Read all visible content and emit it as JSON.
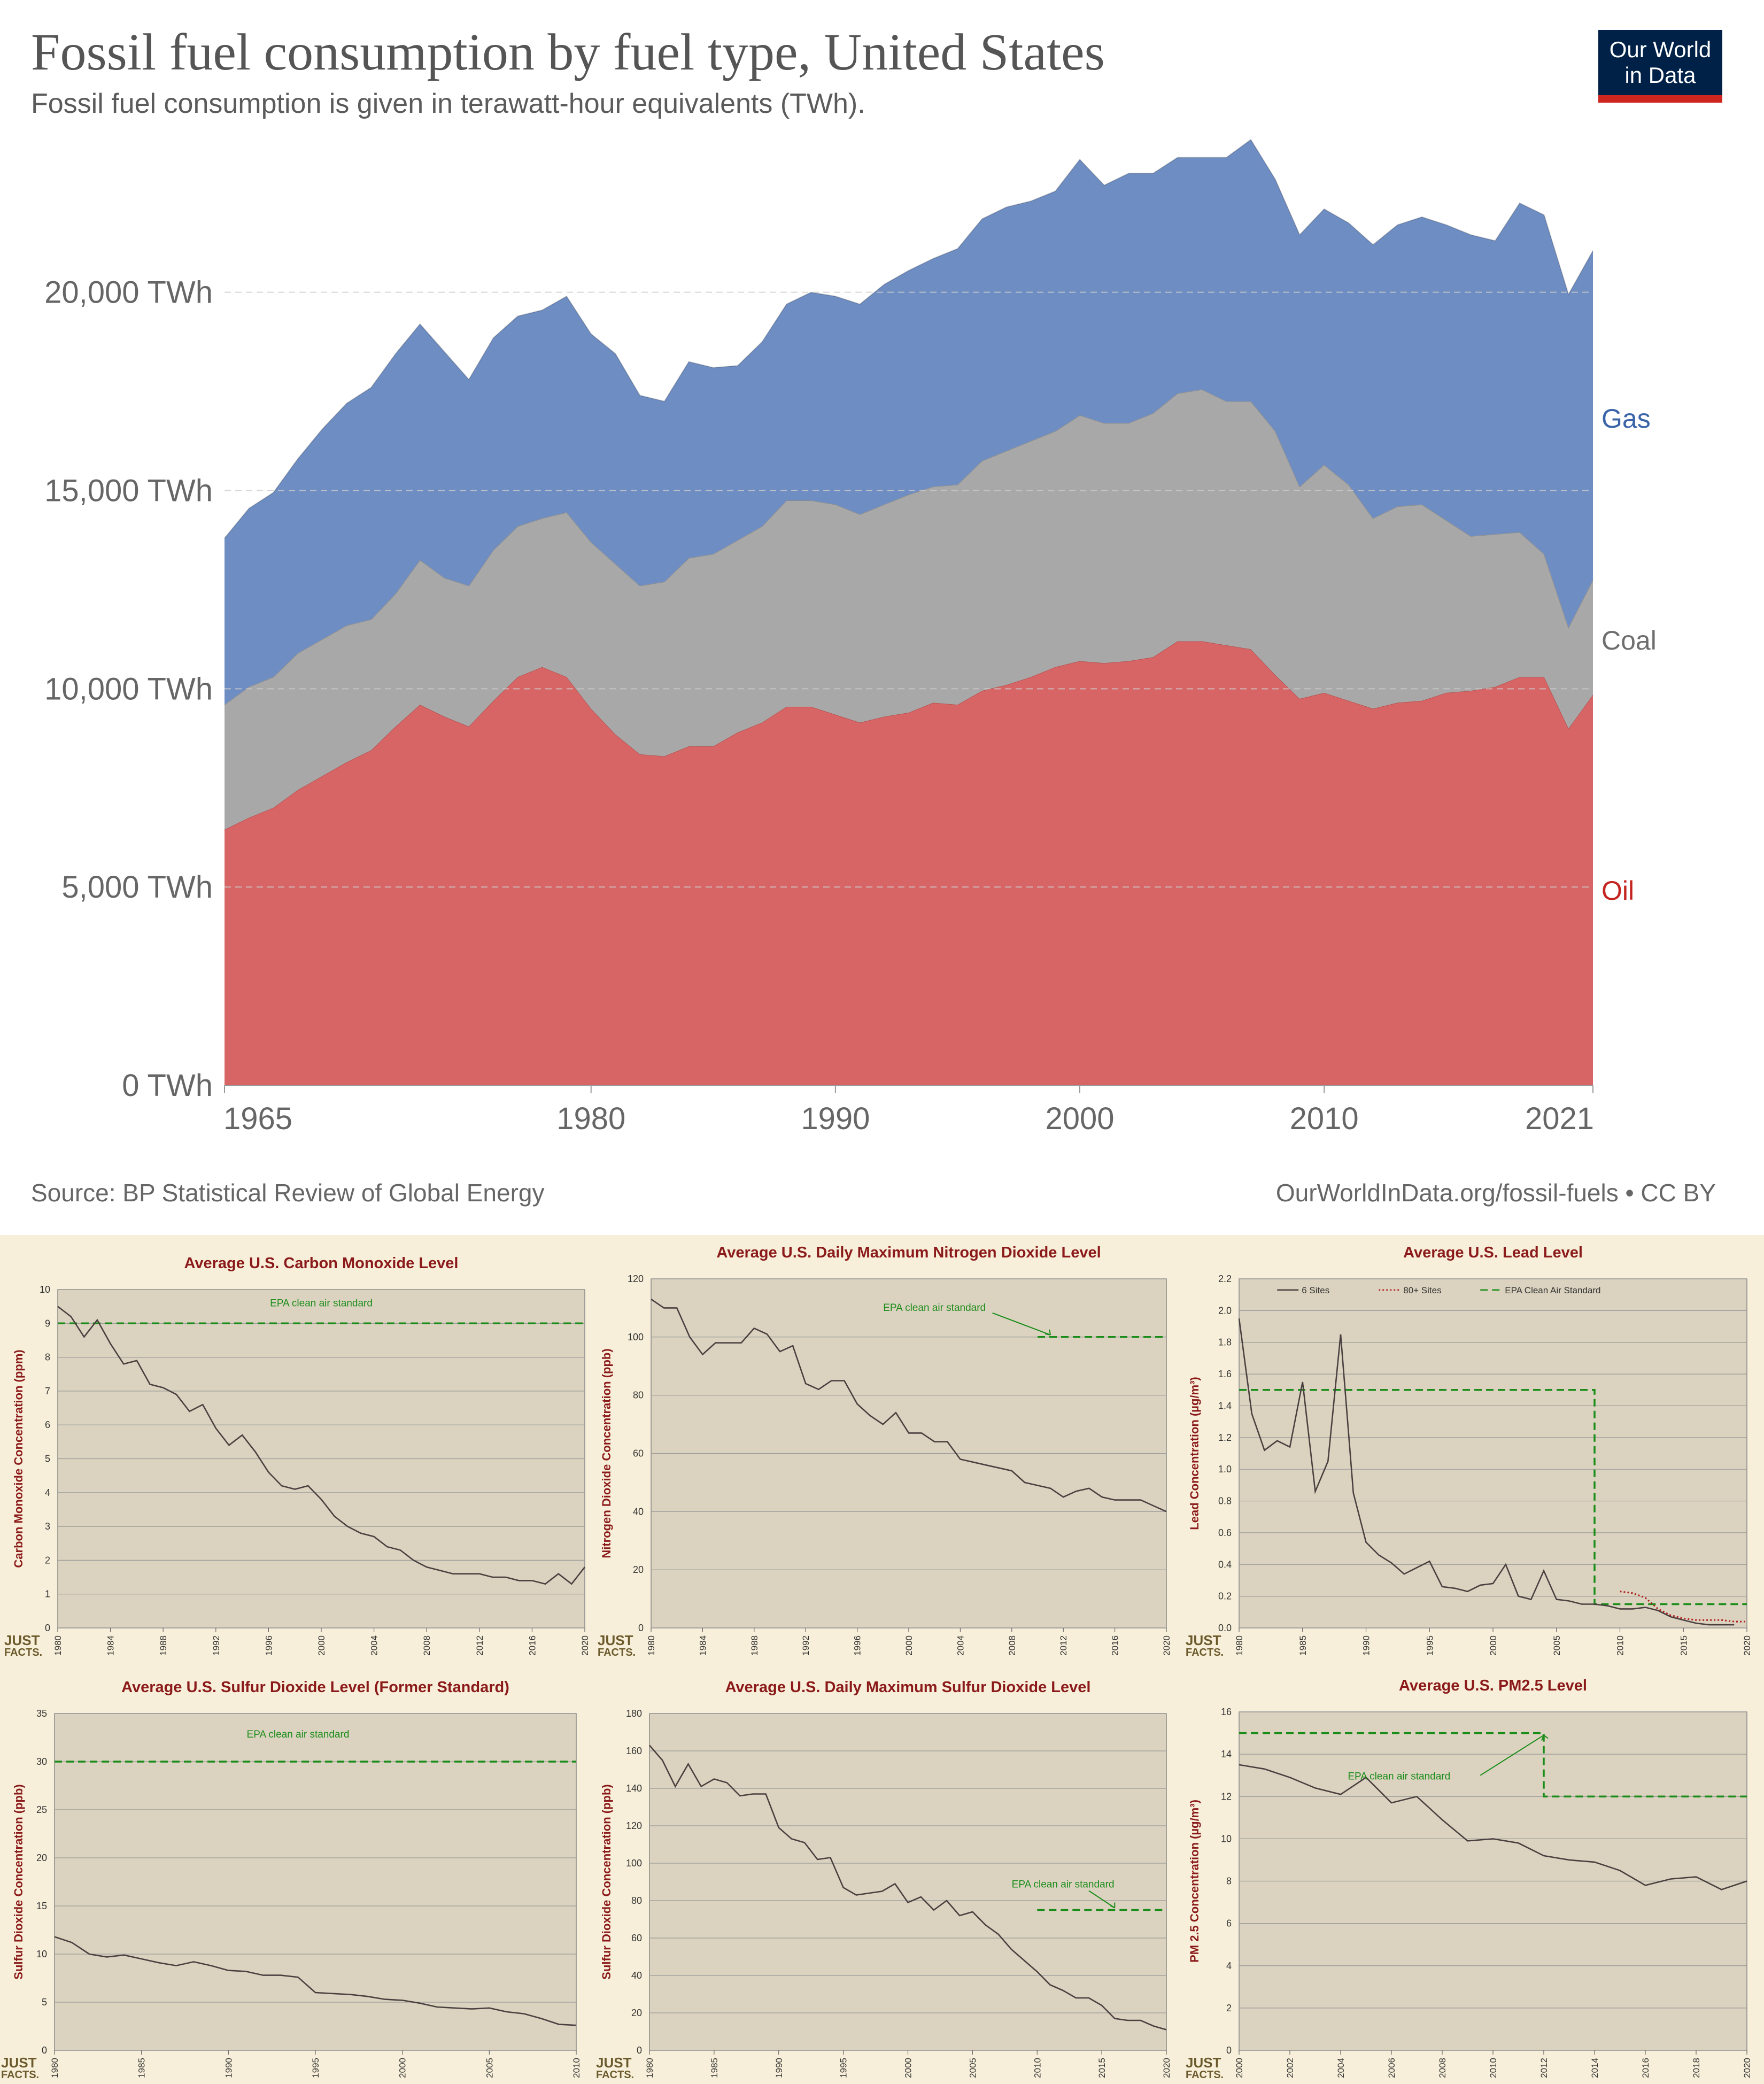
{
  "header": {
    "title": "Fossil fuel consumption by fuel type, United States",
    "subtitle": "Fossil fuel consumption is given in terawatt-hour equivalents (TWh).",
    "logo_line1": "Our World",
    "logo_line2": "in Data"
  },
  "footer": {
    "source": "Source: BP Statistical Review of Global Energy",
    "license": "OurWorldInData.org/fossil-fuels • CC BY"
  },
  "colors": {
    "oil": "#d86565",
    "coal": "#a8a8a8",
    "gas": "#6e8dc2",
    "oil_label": "#c4241f",
    "coal_label": "#6e6e6e",
    "gas_label": "#3a64a8",
    "panel_bg": "#dbd3bf",
    "panel_title": "#8b1a1a",
    "standard": "#1a8c1a",
    "pollutant_line": "#4a4040"
  },
  "chart_data": [
    {
      "id": "fossil",
      "type": "area",
      "stacked": true,
      "title": "Fossil fuel consumption by fuel type, United States",
      "ylim": [
        0,
        24000
      ],
      "y_ticks": [
        0,
        5000,
        10000,
        15000,
        20000
      ],
      "y_tick_labels": [
        "0 TWh",
        "5,000 TWh",
        "10,000 TWh",
        "15,000 TWh",
        "20,000 TWh"
      ],
      "x_ticks": [
        1965,
        1980,
        1990,
        2000,
        2010,
        2021
      ],
      "x_tick_labels": [
        "1965",
        "1980",
        "1990",
        "2000",
        "2010",
        "2021"
      ],
      "x": [
        1965,
        1966,
        1967,
        1968,
        1969,
        1970,
        1971,
        1972,
        1973,
        1974,
        1975,
        1976,
        1977,
        1978,
        1979,
        1980,
        1981,
        1982,
        1983,
        1984,
        1985,
        1986,
        1987,
        1988,
        1989,
        1990,
        1991,
        1992,
        1993,
        1994,
        1995,
        1996,
        1997,
        1998,
        1999,
        2000,
        2001,
        2002,
        2003,
        2004,
        2005,
        2006,
        2007,
        2008,
        2009,
        2010,
        2011,
        2012,
        2013,
        2014,
        2015,
        2016,
        2017,
        2018,
        2019,
        2020,
        2021
      ],
      "series": [
        {
          "name": "Oil",
          "values": [
            6450,
            6750,
            7000,
            7450,
            7800,
            8150,
            8450,
            9050,
            9600,
            9300,
            9050,
            9700,
            10300,
            10550,
            10300,
            9500,
            8850,
            8350,
            8300,
            8550,
            8550,
            8900,
            9150,
            9550,
            9550,
            9350,
            9150,
            9300,
            9400,
            9650,
            9600,
            9950,
            10100,
            10300,
            10550,
            10700,
            10650,
            10700,
            10800,
            11200,
            11200,
            11100,
            11000,
            10350,
            9750,
            9900,
            9700,
            9500,
            9650,
            9700,
            9900,
            9950,
            10050,
            10300,
            10300,
            9000,
            9850
          ]
        },
        {
          "name": "Coal",
          "values": [
            3150,
            3300,
            3300,
            3450,
            3450,
            3450,
            3300,
            3350,
            3650,
            3500,
            3550,
            3800,
            3800,
            3750,
            4150,
            4200,
            4300,
            4250,
            4400,
            4750,
            4850,
            4850,
            4950,
            5200,
            5200,
            5300,
            5250,
            5350,
            5500,
            5450,
            5550,
            5800,
            5900,
            5950,
            5950,
            6200,
            6050,
            6000,
            6150,
            6250,
            6350,
            6150,
            6250,
            6150,
            5350,
            5750,
            5450,
            4800,
            4950,
            4950,
            4350,
            3900,
            3850,
            3650,
            3100,
            2550,
            2900
          ]
        },
        {
          "name": "Gas",
          "values": [
            4200,
            4500,
            4650,
            4900,
            5300,
            5600,
            5850,
            6050,
            5950,
            5700,
            5200,
            5350,
            5300,
            5250,
            5450,
            5250,
            5300,
            4800,
            4550,
            4950,
            4700,
            4400,
            4650,
            4950,
            5250,
            5250,
            5300,
            5550,
            5650,
            5750,
            5950,
            6100,
            6150,
            6050,
            6050,
            6450,
            6000,
            6300,
            6050,
            5950,
            5850,
            6150,
            6600,
            6350,
            6350,
            6450,
            6600,
            6900,
            7100,
            7250,
            7450,
            7600,
            7400,
            8300,
            8550,
            8400,
            8300
          ]
        }
      ],
      "series_labels": [
        "Gas",
        "Coal",
        "Oil"
      ]
    },
    {
      "id": "co",
      "type": "line",
      "title": "Average U.S. Carbon Monoxide Level",
      "ylabel": "Carbon Monoxide Concentration (ppm)",
      "xlim": [
        1980,
        2020
      ],
      "ylim": [
        0,
        10
      ],
      "x_ticks": [
        1980,
        1984,
        1988,
        1992,
        1996,
        2000,
        2004,
        2008,
        2012,
        2016,
        2020
      ],
      "y_ticks": [
        0,
        1,
        2,
        3,
        4,
        5,
        6,
        7,
        8,
        9,
        10
      ],
      "x": [
        1980,
        1981,
        1982,
        1983,
        1984,
        1985,
        1986,
        1987,
        1988,
        1989,
        1990,
        1991,
        1992,
        1993,
        1994,
        1995,
        1996,
        1997,
        1998,
        1999,
        2000,
        2001,
        2002,
        2003,
        2004,
        2005,
        2006,
        2007,
        2008,
        2009,
        2010,
        2011,
        2012,
        2013,
        2014,
        2015,
        2016,
        2017,
        2018,
        2019,
        2020
      ],
      "series": [
        {
          "name": "CO",
          "values": [
            9.5,
            9.2,
            8.6,
            9.1,
            8.4,
            7.8,
            7.9,
            7.2,
            7.1,
            6.9,
            6.4,
            6.6,
            5.9,
            5.4,
            5.7,
            5.2,
            4.6,
            4.2,
            4.1,
            4.2,
            3.8,
            3.3,
            3.0,
            2.8,
            2.7,
            2.4,
            2.3,
            2.0,
            1.8,
            1.7,
            1.6,
            1.6,
            1.6,
            1.5,
            1.5,
            1.4,
            1.4,
            1.3,
            1.6,
            1.3,
            1.8
          ]
        }
      ],
      "standard": {
        "label": "EPA clean air standard",
        "segments": [
          [
            [
              1980,
              9
            ],
            [
              2020,
              9
            ]
          ]
        ]
      }
    },
    {
      "id": "no2",
      "type": "line",
      "title": "Average U.S. Daily Maximum Nitrogen Dioxide Level",
      "ylabel": "Nitrogen Dioxide Concentration (ppb)",
      "xlim": [
        1980,
        2020
      ],
      "ylim": [
        0,
        120
      ],
      "x_ticks": [
        1980,
        1984,
        1988,
        1992,
        1996,
        2000,
        2004,
        2008,
        2012,
        2016,
        2020
      ],
      "y_ticks": [
        0,
        20,
        40,
        60,
        80,
        100,
        120
      ],
      "x": [
        1980,
        1981,
        1982,
        1983,
        1984,
        1985,
        1986,
        1987,
        1988,
        1989,
        1990,
        1991,
        1992,
        1993,
        1994,
        1995,
        1996,
        1997,
        1998,
        1999,
        2000,
        2001,
        2002,
        2003,
        2004,
        2005,
        2006,
        2007,
        2008,
        2009,
        2010,
        2011,
        2012,
        2013,
        2014,
        2015,
        2016,
        2017,
        2018,
        2019,
        2020
      ],
      "series": [
        {
          "name": "NO2",
          "values": [
            113,
            110,
            110,
            100,
            94,
            98,
            98,
            98,
            103,
            101,
            95,
            97,
            84,
            82,
            85,
            85,
            77,
            73,
            70,
            74,
            67,
            67,
            64,
            64,
            58,
            57,
            56,
            55,
            54,
            50,
            49,
            48,
            45,
            47,
            48,
            45,
            44,
            44,
            44,
            42,
            40
          ]
        }
      ],
      "standard": {
        "label": "EPA clean air standard",
        "segments": [
          [
            [
              2010,
              100
            ],
            [
              2020,
              100
            ]
          ]
        ]
      }
    },
    {
      "id": "lead",
      "type": "line",
      "title": "Average U.S. Lead Level",
      "ylabel": "Lead Concentration (µg/m³)",
      "xlim": [
        1980,
        2020
      ],
      "ylim": [
        0,
        2.2
      ],
      "x_ticks": [
        1980,
        1985,
        1990,
        1995,
        2000,
        2005,
        2010,
        2015,
        2020
      ],
      "y_ticks": [
        0,
        0.2,
        0.4,
        0.6,
        0.8,
        1.0,
        1.2,
        1.4,
        1.6,
        1.8,
        2.0,
        2.2
      ],
      "y_tick_labels": [
        "0.0",
        "0.2",
        "0.4",
        "0.6",
        "0.8",
        "1.0",
        "1.2",
        "1.4",
        "1.6",
        "1.8",
        "2.0",
        "2.2"
      ],
      "legend": [
        "6 Sites",
        "80+ Sites",
        "EPA Clean Air Standard"
      ],
      "series": [
        {
          "name": "6 Sites",
          "x": [
            1980,
            1981,
            1982,
            1983,
            1984,
            1985,
            1986,
            1987,
            1988,
            1989,
            1990,
            1991,
            1992,
            1993,
            1994,
            1995,
            1996,
            1997,
            1998,
            1999,
            2000,
            2001,
            2002,
            2003,
            2004,
            2005,
            2006,
            2007,
            2008,
            2009,
            2010,
            2011,
            2012,
            2013,
            2014,
            2015,
            2016,
            2017,
            2018,
            2019
          ],
          "values": [
            1.95,
            1.35,
            1.12,
            1.18,
            1.14,
            1.55,
            0.86,
            1.05,
            1.85,
            0.85,
            0.54,
            0.46,
            0.41,
            0.34,
            0.38,
            0.42,
            0.26,
            0.25,
            0.23,
            0.27,
            0.28,
            0.4,
            0.2,
            0.18,
            0.36,
            0.18,
            0.17,
            0.15,
            0.15,
            0.14,
            0.12,
            0.12,
            0.13,
            0.11,
            0.07,
            0.05,
            0.03,
            0.02,
            0.02,
            0.02
          ]
        },
        {
          "name": "80+ Sites",
          "x": [
            2010,
            2011,
            2012,
            2013,
            2014,
            2015,
            2016,
            2017,
            2018,
            2019,
            2020
          ],
          "values": [
            0.23,
            0.22,
            0.19,
            0.12,
            0.08,
            0.06,
            0.05,
            0.05,
            0.05,
            0.04,
            0.04
          ]
        }
      ],
      "standard": {
        "label": "EPA Clean Air Standard",
        "segments": [
          [
            [
              1980,
              1.5
            ],
            [
              2008,
              1.5
            ],
            [
              2008,
              0.15
            ],
            [
              2020,
              0.15
            ]
          ]
        ]
      }
    },
    {
      "id": "so2_former",
      "type": "line",
      "title": "Average U.S. Sulfur Dioxide Level (Former Standard)",
      "ylabel": "Sulfur Dioxide Concentration (ppb)",
      "xlim": [
        1980,
        2010
      ],
      "ylim": [
        0,
        35
      ],
      "x_ticks": [
        1980,
        1985,
        1990,
        1995,
        2000,
        2005,
        2010
      ],
      "y_ticks": [
        0,
        5,
        10,
        15,
        20,
        25,
        30,
        35
      ],
      "x": [
        1980,
        1981,
        1982,
        1983,
        1984,
        1985,
        1986,
        1987,
        1988,
        1989,
        1990,
        1991,
        1992,
        1993,
        1994,
        1995,
        1996,
        1997,
        1998,
        1999,
        2000,
        2001,
        2002,
        2003,
        2004,
        2005,
        2006,
        2007,
        2008,
        2009,
        2010
      ],
      "series": [
        {
          "name": "SO2",
          "values": [
            11.8,
            11.2,
            10.0,
            9.7,
            9.9,
            9.5,
            9.1,
            8.8,
            9.2,
            8.8,
            8.3,
            8.2,
            7.8,
            7.8,
            7.6,
            6.0,
            5.9,
            5.8,
            5.6,
            5.3,
            5.2,
            4.9,
            4.5,
            4.4,
            4.3,
            4.4,
            4.0,
            3.8,
            3.3,
            2.7,
            2.6
          ]
        }
      ],
      "standard": {
        "label": "EPA clean air standard",
        "segments": [
          [
            [
              1980,
              30
            ],
            [
              2010,
              30
            ]
          ]
        ]
      }
    },
    {
      "id": "so2_max",
      "type": "line",
      "title": "Average U.S. Daily Maximum Sulfur Dioxide Level",
      "ylabel": "Sulfur Dioxide Concentration (ppb)",
      "xlim": [
        1980,
        2020
      ],
      "ylim": [
        0,
        180
      ],
      "x_ticks": [
        1980,
        1985,
        1990,
        1995,
        2000,
        2005,
        2010,
        2015,
        2020
      ],
      "y_ticks": [
        0,
        20,
        40,
        60,
        80,
        100,
        120,
        140,
        160,
        180
      ],
      "x": [
        1980,
        1981,
        1982,
        1983,
        1984,
        1985,
        1986,
        1987,
        1988,
        1989,
        1990,
        1991,
        1992,
        1993,
        1994,
        1995,
        1996,
        1997,
        1998,
        1999,
        2000,
        2001,
        2002,
        2003,
        2004,
        2005,
        2006,
        2007,
        2008,
        2009,
        2010,
        2011,
        2012,
        2013,
        2014,
        2015,
        2016,
        2017,
        2018,
        2019,
        2020
      ],
      "series": [
        {
          "name": "SO2",
          "values": [
            163,
            155,
            141,
            153,
            141,
            145,
            143,
            136,
            137,
            137,
            119,
            113,
            111,
            102,
            103,
            87,
            83,
            84,
            85,
            89,
            79,
            82,
            75,
            80,
            72,
            74,
            67,
            62,
            54,
            48,
            42,
            35,
            32,
            28,
            28,
            24,
            17,
            16,
            16,
            13,
            11
          ]
        }
      ],
      "standard": {
        "label": "EPA clean air standard",
        "segments": [
          [
            [
              2010,
              75
            ],
            [
              2020,
              75
            ]
          ]
        ]
      }
    },
    {
      "id": "pm25",
      "type": "line",
      "title": "Average U.S. PM2.5 Level",
      "ylabel": "PM 2.5 Concentration (µg/m³)",
      "xlim": [
        2000,
        2020
      ],
      "ylim": [
        0,
        16
      ],
      "x_ticks": [
        2000,
        2002,
        2004,
        2006,
        2008,
        2010,
        2012,
        2014,
        2016,
        2018,
        2020
      ],
      "y_ticks": [
        0,
        2,
        4,
        6,
        8,
        10,
        12,
        14,
        16
      ],
      "x": [
        2000,
        2001,
        2002,
        2003,
        2004,
        2005,
        2006,
        2007,
        2008,
        2009,
        2010,
        2011,
        2012,
        2013,
        2014,
        2015,
        2016,
        2017,
        2018,
        2019,
        2020
      ],
      "series": [
        {
          "name": "PM2.5",
          "values": [
            13.5,
            13.3,
            12.9,
            12.4,
            12.1,
            12.9,
            11.7,
            12.0,
            10.9,
            9.9,
            10.0,
            9.8,
            9.2,
            9.0,
            8.9,
            8.5,
            7.8,
            8.1,
            8.2,
            7.6,
            8.0
          ]
        }
      ],
      "standard": {
        "label": "EPA clean air standard",
        "segments": [
          [
            [
              2000,
              15
            ],
            [
              2012,
              15
            ],
            [
              2012,
              12
            ],
            [
              2020,
              12
            ]
          ]
        ]
      }
    }
  ],
  "watermark": {
    "line1": "JUST",
    "line2": "FACTS."
  }
}
